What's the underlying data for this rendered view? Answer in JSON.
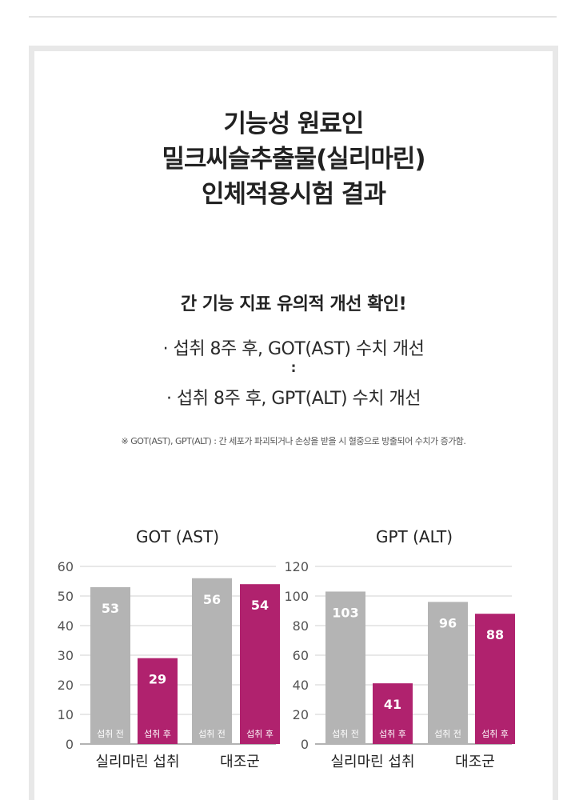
{
  "header": {
    "title_lines": [
      "기능성 원료인",
      "밀크씨슬추출물(실리마린)",
      "인체적용시험 결과"
    ]
  },
  "summary": {
    "headline": "간 기능 지표 유의적 개선 확인!",
    "item1": "· 섭취 8주 후, GOT(AST) 수치 개선",
    "separator": ":",
    "item2": "· 섭취 8주 후,  GPT(ALT) 수치 개선",
    "footnote": "※ GOT(AST), GPT(ALT) : 간 세포가 파괴되거나 손상을 받을 시 혈중으로 방출되어 수치가 증가함."
  },
  "colors": {
    "before_bar": "#b4b4b4",
    "after_bar": "#b0226e",
    "grid": "#d0d0d0",
    "axis": "#9a9a9a"
  },
  "chart_data": [
    {
      "type": "bar",
      "title": "GOT (AST)",
      "categories": [
        "실리마린 섭취",
        "대조군"
      ],
      "series": [
        {
          "name": "섭취 전",
          "values": [
            53,
            56
          ]
        },
        {
          "name": "섭취 후",
          "values": [
            29,
            54
          ]
        }
      ],
      "yticks": [
        0,
        10,
        20,
        30,
        40,
        50,
        60
      ],
      "ylim": [
        0,
        60
      ],
      "grid": true
    },
    {
      "type": "bar",
      "title": "GPT (ALT)",
      "categories": [
        "실리마린 섭취",
        "대조군"
      ],
      "series": [
        {
          "name": "섭취 전",
          "values": [
            103,
            96
          ]
        },
        {
          "name": "섭취 후",
          "values": [
            41,
            88
          ]
        }
      ],
      "yticks": [
        0,
        20,
        40,
        60,
        80,
        100,
        120
      ],
      "ylim": [
        0,
        120
      ],
      "grid": true
    }
  ]
}
